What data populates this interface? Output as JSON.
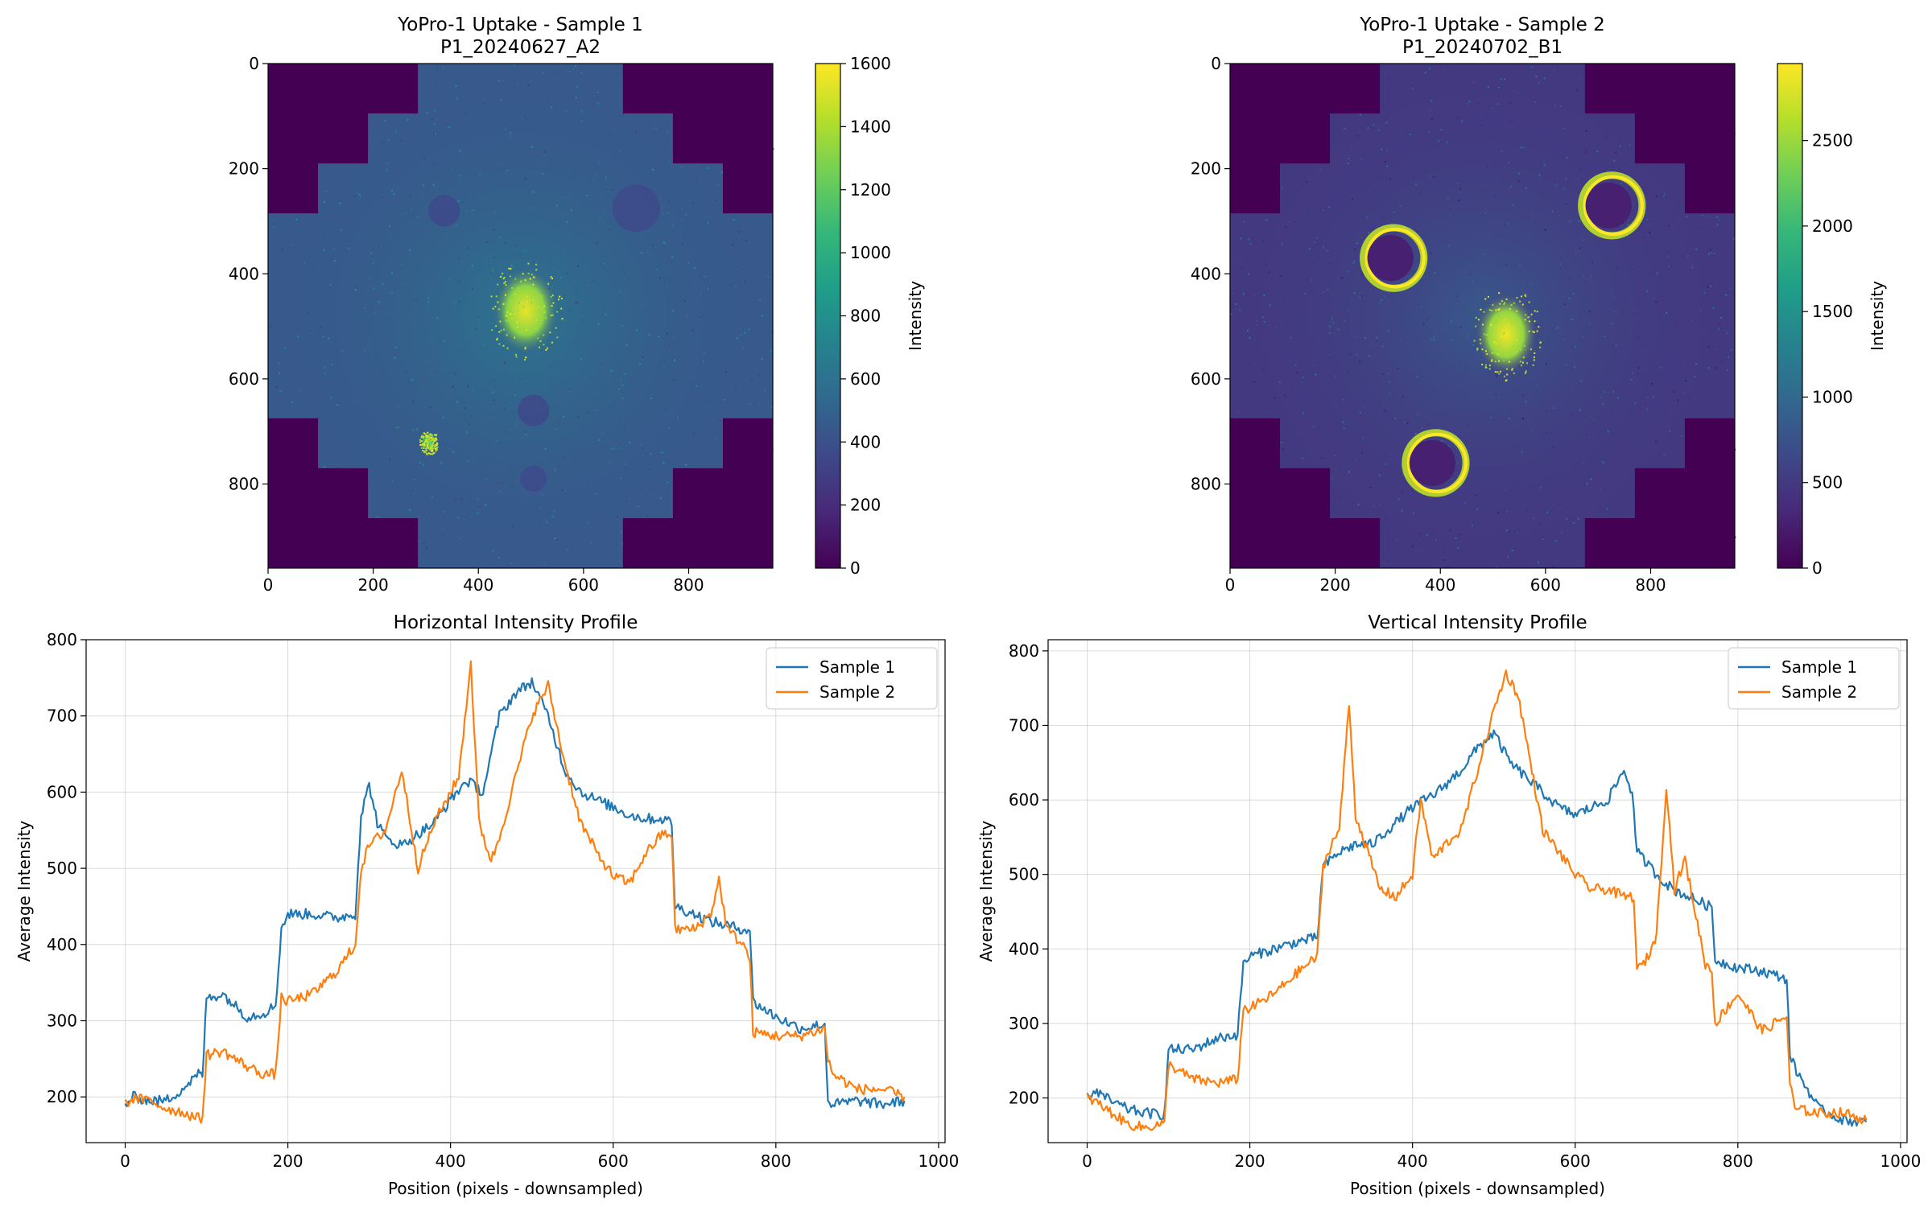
{
  "colors": {
    "sample1": "#1f77b4",
    "sample2": "#ff7f0e",
    "grid": "#b0b0b0",
    "viridis_low": "#440154",
    "viridis_high": "#fde725"
  },
  "chart_data": [
    {
      "type": "heatmap",
      "title": "YoPro-1 Uptake - Sample 1\nP1_20240627_A2",
      "colorbar_label": "Intensity",
      "colormap": "viridis",
      "clim": [
        0,
        1600
      ],
      "colorbar_ticks": [
        "0",
        "200",
        "400",
        "600",
        "800",
        "1000",
        "1200",
        "1400",
        "1600"
      ],
      "xticks": [
        "0",
        "200",
        "400",
        "600",
        "800"
      ],
      "yticks": [
        "0",
        "200",
        "400",
        "600",
        "800"
      ],
      "extent": [
        0,
        960,
        960,
        0
      ],
      "background_level": 450,
      "hotspots": [
        {
          "x": 490,
          "y": 470,
          "level": 1550,
          "radius": 40
        },
        {
          "x": 305,
          "y": 720,
          "level": 1300,
          "radius": 10
        }
      ],
      "dark_spots": [
        {
          "x": 700,
          "y": 275,
          "radius": 45
        },
        {
          "x": 335,
          "y": 280,
          "radius": 30
        },
        {
          "x": 505,
          "y": 660,
          "radius": 30
        },
        {
          "x": 505,
          "y": 790,
          "radius": 25
        }
      ],
      "corner_mask": "stepped",
      "grid": false
    },
    {
      "type": "heatmap",
      "title": "YoPro-1 Uptake - Sample 2\nP1_20240702_B1",
      "colorbar_label": "Intensity",
      "colormap": "viridis",
      "clim": [
        0,
        2950
      ],
      "colorbar_ticks": [
        "0",
        "500",
        "1000",
        "1500",
        "2000",
        "2500"
      ],
      "xticks": [
        "0",
        "200",
        "400",
        "600",
        "800"
      ],
      "yticks": [
        "0",
        "200",
        "400",
        "600",
        "800"
      ],
      "extent": [
        0,
        960,
        960,
        0
      ],
      "background_level": 500,
      "hotspots": [
        {
          "x": 525,
          "y": 515,
          "level": 2900,
          "radius": 38
        }
      ],
      "ring_wells": [
        {
          "x": 305,
          "y": 370,
          "radius": 50
        },
        {
          "x": 720,
          "y": 270,
          "radius": 50
        },
        {
          "x": 385,
          "y": 760,
          "radius": 50
        }
      ],
      "corner_mask": "stepped",
      "grid": false
    },
    {
      "type": "line",
      "title": "Horizontal Intensity Profile",
      "xlabel": "Position (pixels - downsampled)",
      "ylabel": "Average Intensity",
      "xlim": [
        -48,
        1008
      ],
      "ylim": [
        140,
        800
      ],
      "xticks": [
        0,
        200,
        400,
        600,
        800,
        1000
      ],
      "yticks": [
        200,
        300,
        400,
        500,
        600,
        700,
        800
      ],
      "grid": true,
      "legend": "top-right",
      "series": [
        {
          "name": "Sample 1",
          "x": [
            0,
            10,
            30,
            50,
            70,
            90,
            95,
            100,
            120,
            150,
            170,
            185,
            192,
            200,
            230,
            260,
            283,
            290,
            300,
            310,
            320,
            340,
            360,
            380,
            400,
            420,
            440,
            460,
            480,
            500,
            520,
            540,
            560,
            580,
            600,
            620,
            640,
            660,
            672,
            676,
            700,
            720,
            740,
            760,
            768,
            772,
            800,
            830,
            860,
            864,
            870,
            900,
            930,
            958
          ],
          "y": [
            190,
            200,
            195,
            195,
            210,
            230,
            228,
            330,
            335,
            305,
            310,
            320,
            420,
            440,
            440,
            435,
            440,
            570,
            610,
            560,
            540,
            530,
            545,
            560,
            590,
            615,
            600,
            700,
            730,
            745,
            700,
            630,
            600,
            590,
            580,
            570,
            565,
            565,
            560,
            450,
            440,
            430,
            425,
            420,
            420,
            325,
            305,
            290,
            295,
            195,
            190,
            195,
            190,
            195
          ]
        },
        {
          "name": "Sample 2",
          "x": [
            0,
            10,
            30,
            50,
            70,
            90,
            95,
            100,
            120,
            150,
            170,
            185,
            192,
            200,
            230,
            260,
            283,
            290,
            300,
            320,
            340,
            360,
            380,
            400,
            410,
            425,
            435,
            450,
            460,
            480,
            500,
            520,
            540,
            560,
            580,
            600,
            620,
            640,
            660,
            672,
            676,
            700,
            720,
            730,
            740,
            760,
            768,
            772,
            800,
            830,
            860,
            864,
            870,
            900,
            930,
            958
          ],
          "y": [
            190,
            198,
            195,
            185,
            180,
            172,
            172,
            255,
            260,
            240,
            230,
            230,
            330,
            325,
            335,
            365,
            400,
            500,
            530,
            550,
            630,
            500,
            560,
            600,
            620,
            770,
            560,
            510,
            540,
            620,
            700,
            740,
            640,
            560,
            520,
            490,
            480,
            520,
            545,
            545,
            420,
            420,
            440,
            485,
            420,
            400,
            380,
            285,
            280,
            280,
            290,
            250,
            230,
            210,
            210,
            200
          ]
        }
      ]
    },
    {
      "type": "line",
      "title": "Vertical Intensity Profile",
      "xlabel": "Position (pixels - downsampled)",
      "ylabel": "Average Intensity",
      "xlim": [
        -48,
        1008
      ],
      "ylim": [
        140,
        815
      ],
      "xticks": [
        0,
        200,
        400,
        600,
        800,
        1000
      ],
      "yticks": [
        200,
        300,
        400,
        500,
        600,
        700,
        800
      ],
      "grid": true,
      "legend": "top-right",
      "series": [
        {
          "name": "Sample 1",
          "x": [
            0,
            10,
            30,
            50,
            70,
            90,
            95,
            100,
            130,
            160,
            185,
            192,
            200,
            230,
            260,
            283,
            290,
            310,
            330,
            350,
            370,
            400,
            430,
            460,
            480,
            500,
            520,
            540,
            560,
            580,
            600,
            620,
            640,
            660,
            670,
            676,
            700,
            720,
            740,
            760,
            768,
            772,
            800,
            830,
            860,
            864,
            870,
            900,
            930,
            958
          ],
          "y": [
            200,
            210,
            195,
            185,
            180,
            178,
            178,
            265,
            265,
            280,
            285,
            380,
            390,
            400,
            410,
            415,
            510,
            530,
            540,
            540,
            560,
            590,
            610,
            640,
            670,
            690,
            650,
            630,
            610,
            590,
            580,
            590,
            600,
            640,
            610,
            530,
            500,
            480,
            470,
            460,
            455,
            385,
            375,
            370,
            360,
            260,
            240,
            185,
            170,
            168
          ]
        },
        {
          "name": "Sample 2",
          "x": [
            0,
            10,
            30,
            50,
            70,
            90,
            95,
            100,
            130,
            160,
            185,
            192,
            200,
            230,
            260,
            283,
            290,
            300,
            310,
            322,
            330,
            345,
            360,
            380,
            400,
            410,
            425,
            440,
            460,
            480,
            500,
            515,
            530,
            545,
            560,
            580,
            600,
            620,
            640,
            660,
            672,
            676,
            690,
            700,
            712,
            722,
            735,
            760,
            768,
            772,
            800,
            830,
            860,
            864,
            870,
            900,
            930,
            958
          ],
          "y": [
            200,
            195,
            180,
            165,
            160,
            165,
            165,
            245,
            225,
            220,
            225,
            320,
            320,
            340,
            370,
            390,
            510,
            540,
            560,
            730,
            580,
            530,
            480,
            470,
            500,
            600,
            520,
            540,
            560,
            640,
            720,
            770,
            740,
            650,
            560,
            530,
            500,
            480,
            480,
            470,
            470,
            370,
            390,
            420,
            620,
            480,
            520,
            380,
            370,
            300,
            340,
            290,
            310,
            220,
            185,
            180,
            180,
            170
          ]
        }
      ]
    }
  ]
}
